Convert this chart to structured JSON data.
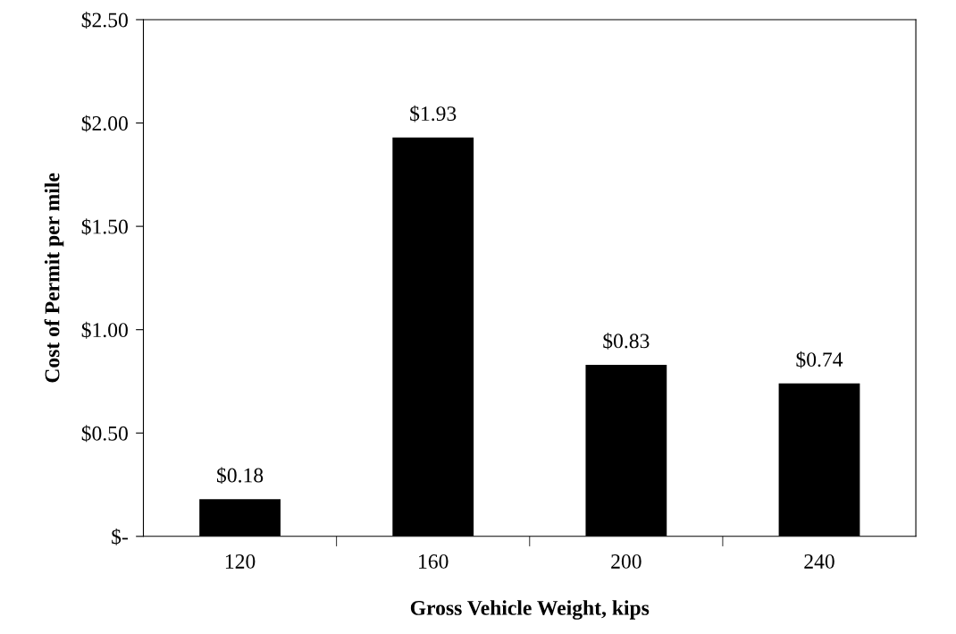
{
  "chart_data": {
    "type": "bar",
    "xlabel": "Gross Vehicle Weight, kips",
    "ylabel": "Cost of Permit per mile",
    "categories": [
      "120",
      "160",
      "200",
      "240"
    ],
    "values": [
      0.18,
      1.93,
      0.83,
      0.74
    ],
    "value_labels": [
      "$0.18",
      "$1.93",
      "$0.83",
      "$0.74"
    ],
    "color": "#000000",
    "ylim": [
      0,
      2.5
    ],
    "yticks": [
      {
        "value": 0,
        "label": "$-"
      },
      {
        "value": 0.5,
        "label": "$0.50"
      },
      {
        "value": 1.0,
        "label": "$1.00"
      },
      {
        "value": 1.5,
        "label": "$1.50"
      },
      {
        "value": 2.0,
        "label": "$2.00"
      },
      {
        "value": 2.5,
        "label": "$2.50"
      }
    ],
    "grid": false,
    "legend": false
  }
}
